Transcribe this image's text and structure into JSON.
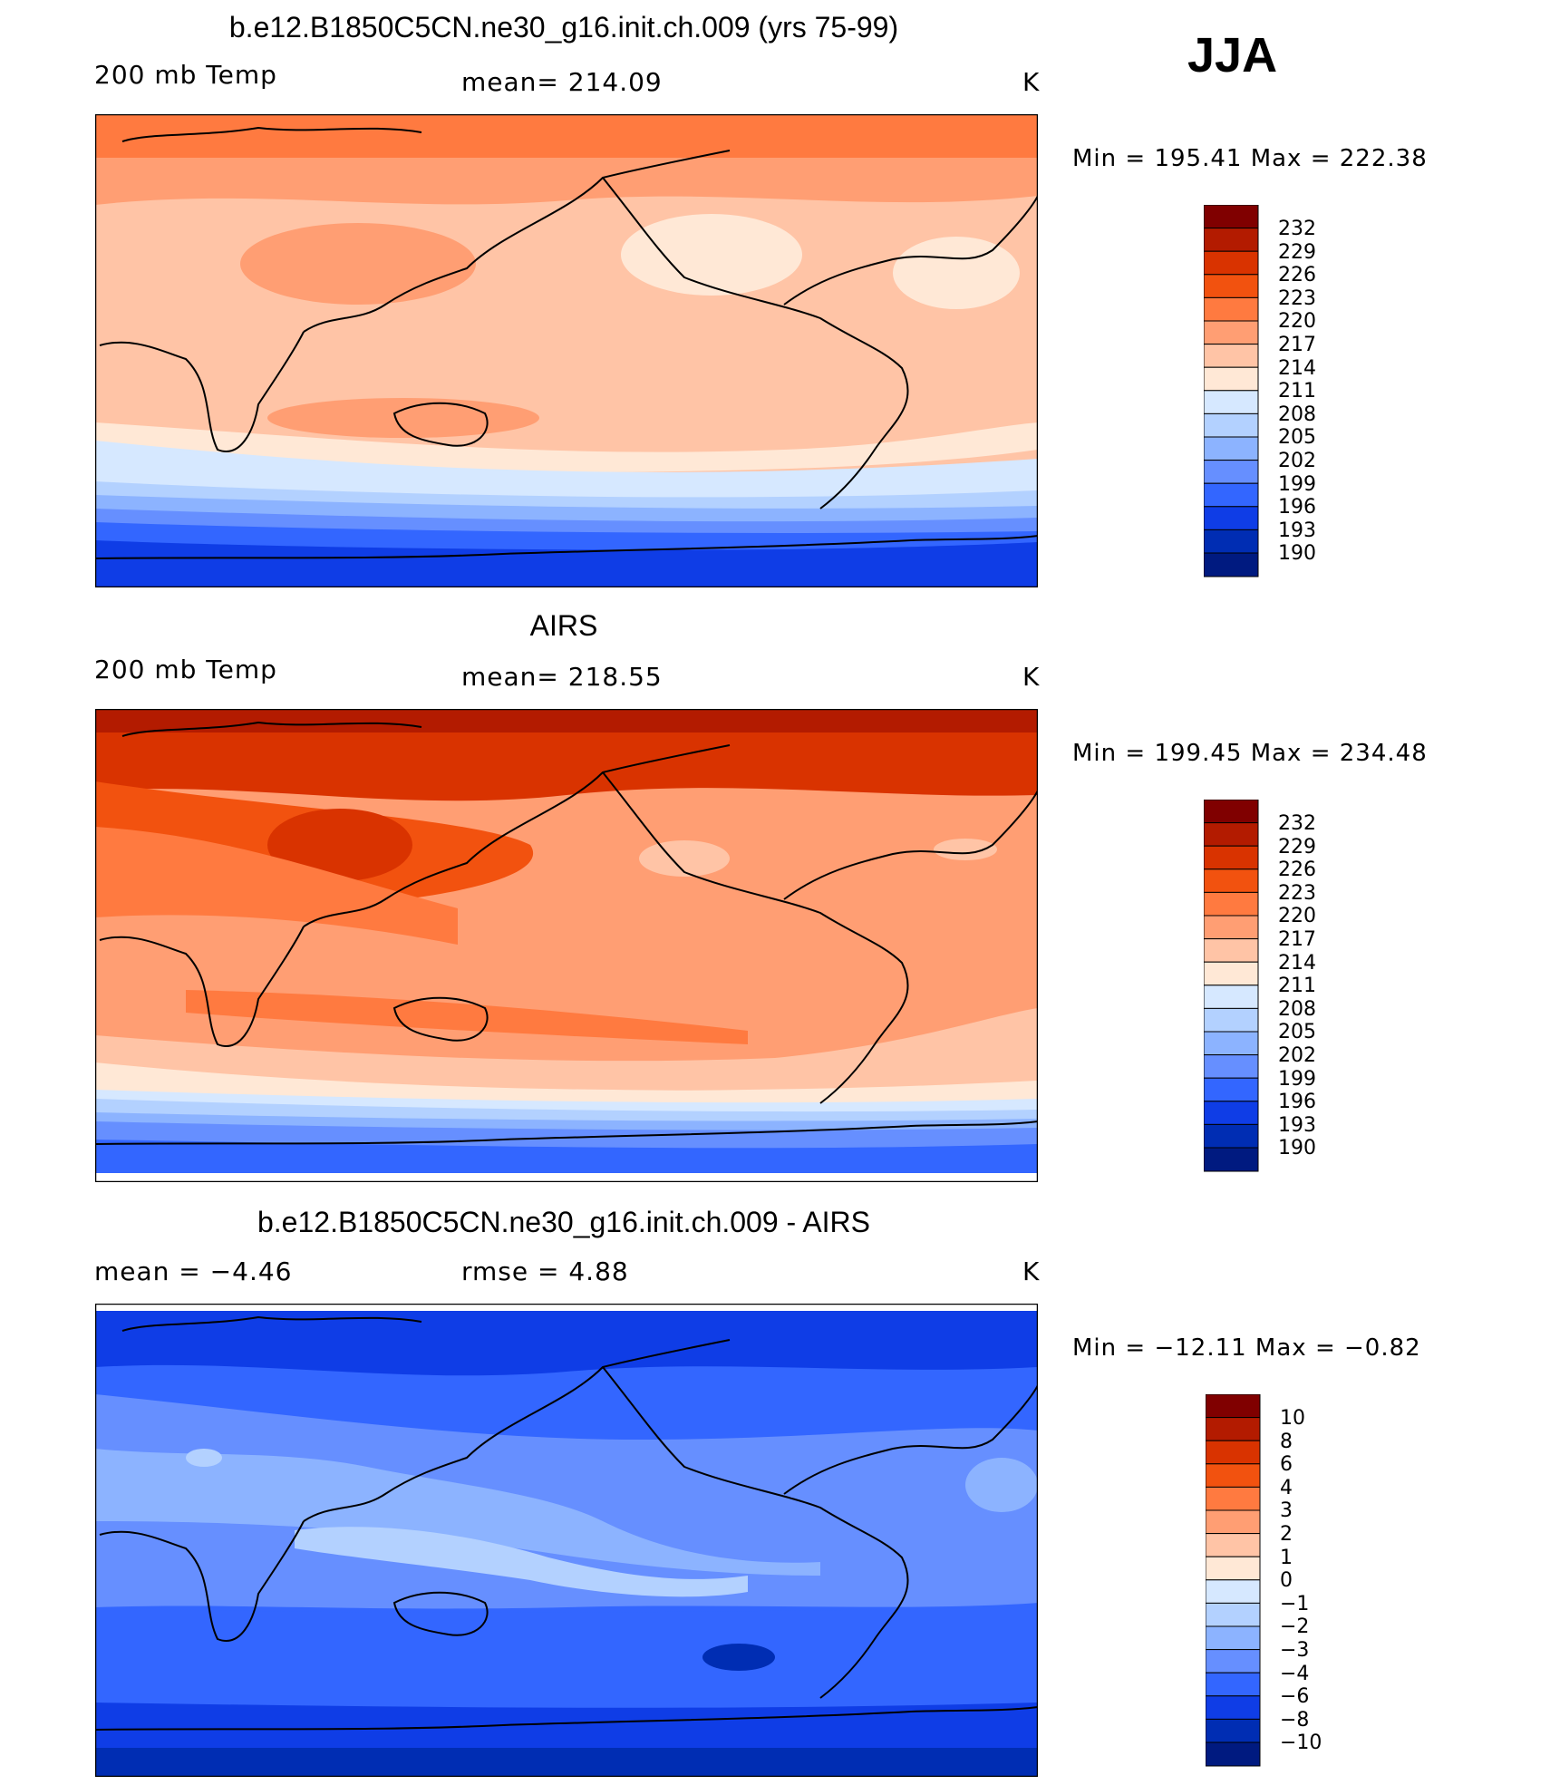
{
  "season": "JJA",
  "panels": [
    {
      "title": "b.e12.B1850C5CN.ne30_g16.init.ch.009 (yrs 75-99)",
      "left_label": "200 mb Temp",
      "center_label": "mean=  214.09",
      "right_label": "K",
      "minmax": "Min  =  195.41  Max  =  222.38",
      "colorbar_labels": [
        "232",
        "229",
        "226",
        "223",
        "220",
        "217",
        "214",
        "211",
        "208",
        "205",
        "202",
        "199",
        "196",
        "193",
        "190"
      ]
    },
    {
      "title": "AIRS",
      "left_label": "200 mb Temp",
      "center_label": "mean=  218.55",
      "right_label": "K",
      "minmax": "Min  =  199.45  Max  =  234.48",
      "colorbar_labels": [
        "232",
        "229",
        "226",
        "223",
        "220",
        "217",
        "214",
        "211",
        "208",
        "205",
        "202",
        "199",
        "196",
        "193",
        "190"
      ]
    },
    {
      "title": "b.e12.B1850C5CN.ne30_g16.init.ch.009 - AIRS",
      "left_label": "mean  =     −4.46",
      "center_label": "rmse  =     4.88",
      "right_label": "K",
      "minmax": "Min  =  −12.11  Max  =    −0.82",
      "colorbar_labels": [
        "10",
        "8",
        "6",
        "4",
        "3",
        "2",
        "1",
        "0",
        "−1",
        "−2",
        "−3",
        "−4",
        "−6",
        "−8",
        "−10"
      ]
    }
  ],
  "colors": {
    "scale": [
      "#800000",
      "#b31b00",
      "#d93300",
      "#f2520f",
      "#ff7a40",
      "#ff9e73",
      "#ffc4a6",
      "#ffe8d6",
      "#d6e8ff",
      "#b3d1ff",
      "#8cb3ff",
      "#668fff",
      "#3366ff",
      "#0f3de6",
      "#002db3",
      "#001a80"
    ]
  }
}
